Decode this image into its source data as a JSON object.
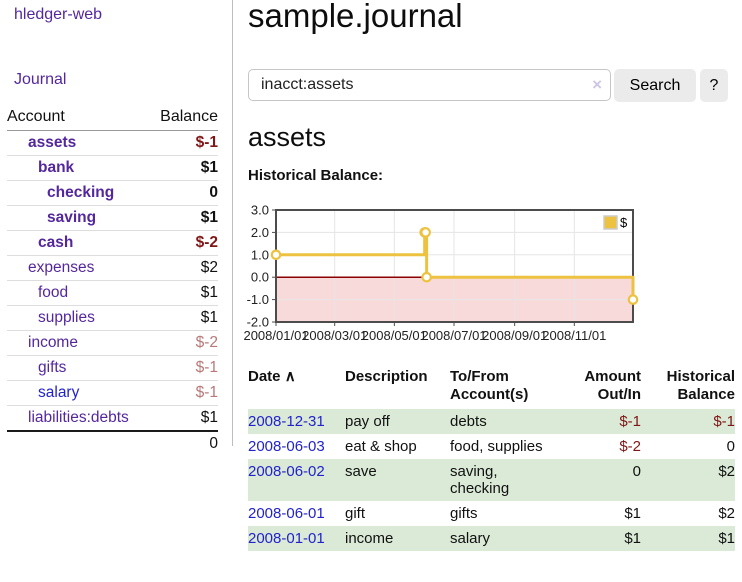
{
  "app": {
    "title": "hledger-web",
    "nav_journal": "Journal"
  },
  "colors": {
    "accent_purple": "#54279d",
    "link_blue": "#2222cc",
    "neg_strong": "#801616",
    "neg_soft": "#b97878",
    "row_green": "#daead6",
    "series_gold": "#edc240",
    "zero_line": "#8b0000",
    "neg_region_pink": "#f9dada",
    "grid_gray": "#e5e5e5",
    "chart_border": "#4c4c4c"
  },
  "sidebar": {
    "col_account": "Account",
    "col_balance": "Balance",
    "rows": [
      {
        "account": "assets",
        "balance": "$-1",
        "indent": 0,
        "bold": true
      },
      {
        "account": "bank",
        "balance": "$1",
        "indent": 1,
        "bold": true
      },
      {
        "account": "checking",
        "balance": "0",
        "indent": 2,
        "bold": true
      },
      {
        "account": "saving",
        "balance": "$1",
        "indent": 2,
        "bold": true
      },
      {
        "account": "cash",
        "balance": "$-2",
        "indent": 1,
        "bold": true
      },
      {
        "account": "expenses",
        "balance": "$2",
        "indent": 0,
        "bold": false
      },
      {
        "account": "food",
        "balance": "$1",
        "indent": 1,
        "bold": false
      },
      {
        "account": "supplies",
        "balance": "$1",
        "indent": 1,
        "bold": false
      },
      {
        "account": "income",
        "balance": "$-2",
        "indent": 0,
        "bold": false
      },
      {
        "account": "gifts",
        "balance": "$-1",
        "indent": 1,
        "bold": false
      },
      {
        "account": "salary",
        "balance": "$-1",
        "indent": 1,
        "bold": false,
        "blue_link": true
      },
      {
        "account": "liabilities:debts",
        "balance": "$1",
        "indent": 0,
        "bold": false
      }
    ],
    "total": "0"
  },
  "main": {
    "title": "sample.journal",
    "search": {
      "value": "inacct:assets",
      "clear_icon": "×",
      "button": "Search",
      "help": "?"
    },
    "account_heading": "assets",
    "chart_label": "Historical Balance:"
  },
  "chart_data": {
    "type": "line",
    "step": true,
    "title": "Historical Balance:",
    "legend": [
      "$"
    ],
    "legend_position": "top-right",
    "x": [
      "2008-01-01",
      "2008-06-01",
      "2008-06-02",
      "2008-06-03",
      "2008-12-31"
    ],
    "values": [
      1,
      2,
      2,
      0,
      -1
    ],
    "ylim": [
      -2,
      3
    ],
    "yticks": [
      "3.0",
      "2.0",
      "1.0",
      "0.0",
      "-1.0",
      "-2.0"
    ],
    "xticks": [
      "2008/01/01",
      "2008/03/01",
      "2008/05/01",
      "2008/07/01",
      "2008/09/01",
      "2008/11/01"
    ],
    "xrange": [
      "2008-01-01",
      "2008-12-31"
    ],
    "grid": true,
    "negative_region_shaded": true
  },
  "register": {
    "headers": {
      "date": "Date",
      "sort_icon": "∧",
      "description": "Description",
      "accounts": "To/From Account(s)",
      "amount": "Amount Out/In",
      "balance": "Historical Balance"
    },
    "rows": [
      {
        "date": "2008-12-31",
        "description": "pay off",
        "accounts": "debts",
        "amount": "$-1",
        "balance": "$-1"
      },
      {
        "date": "2008-06-03",
        "description": "eat & shop",
        "accounts": "food, supplies",
        "amount": "$-2",
        "balance": "0"
      },
      {
        "date": "2008-06-02",
        "description": "save",
        "accounts": "saving, checking",
        "amount": "0",
        "balance": "$2"
      },
      {
        "date": "2008-06-01",
        "description": "gift",
        "accounts": "gifts",
        "amount": "$1",
        "balance": "$2"
      },
      {
        "date": "2008-01-01",
        "description": "income",
        "accounts": "salary",
        "amount": "$1",
        "balance": "$1"
      }
    ]
  }
}
